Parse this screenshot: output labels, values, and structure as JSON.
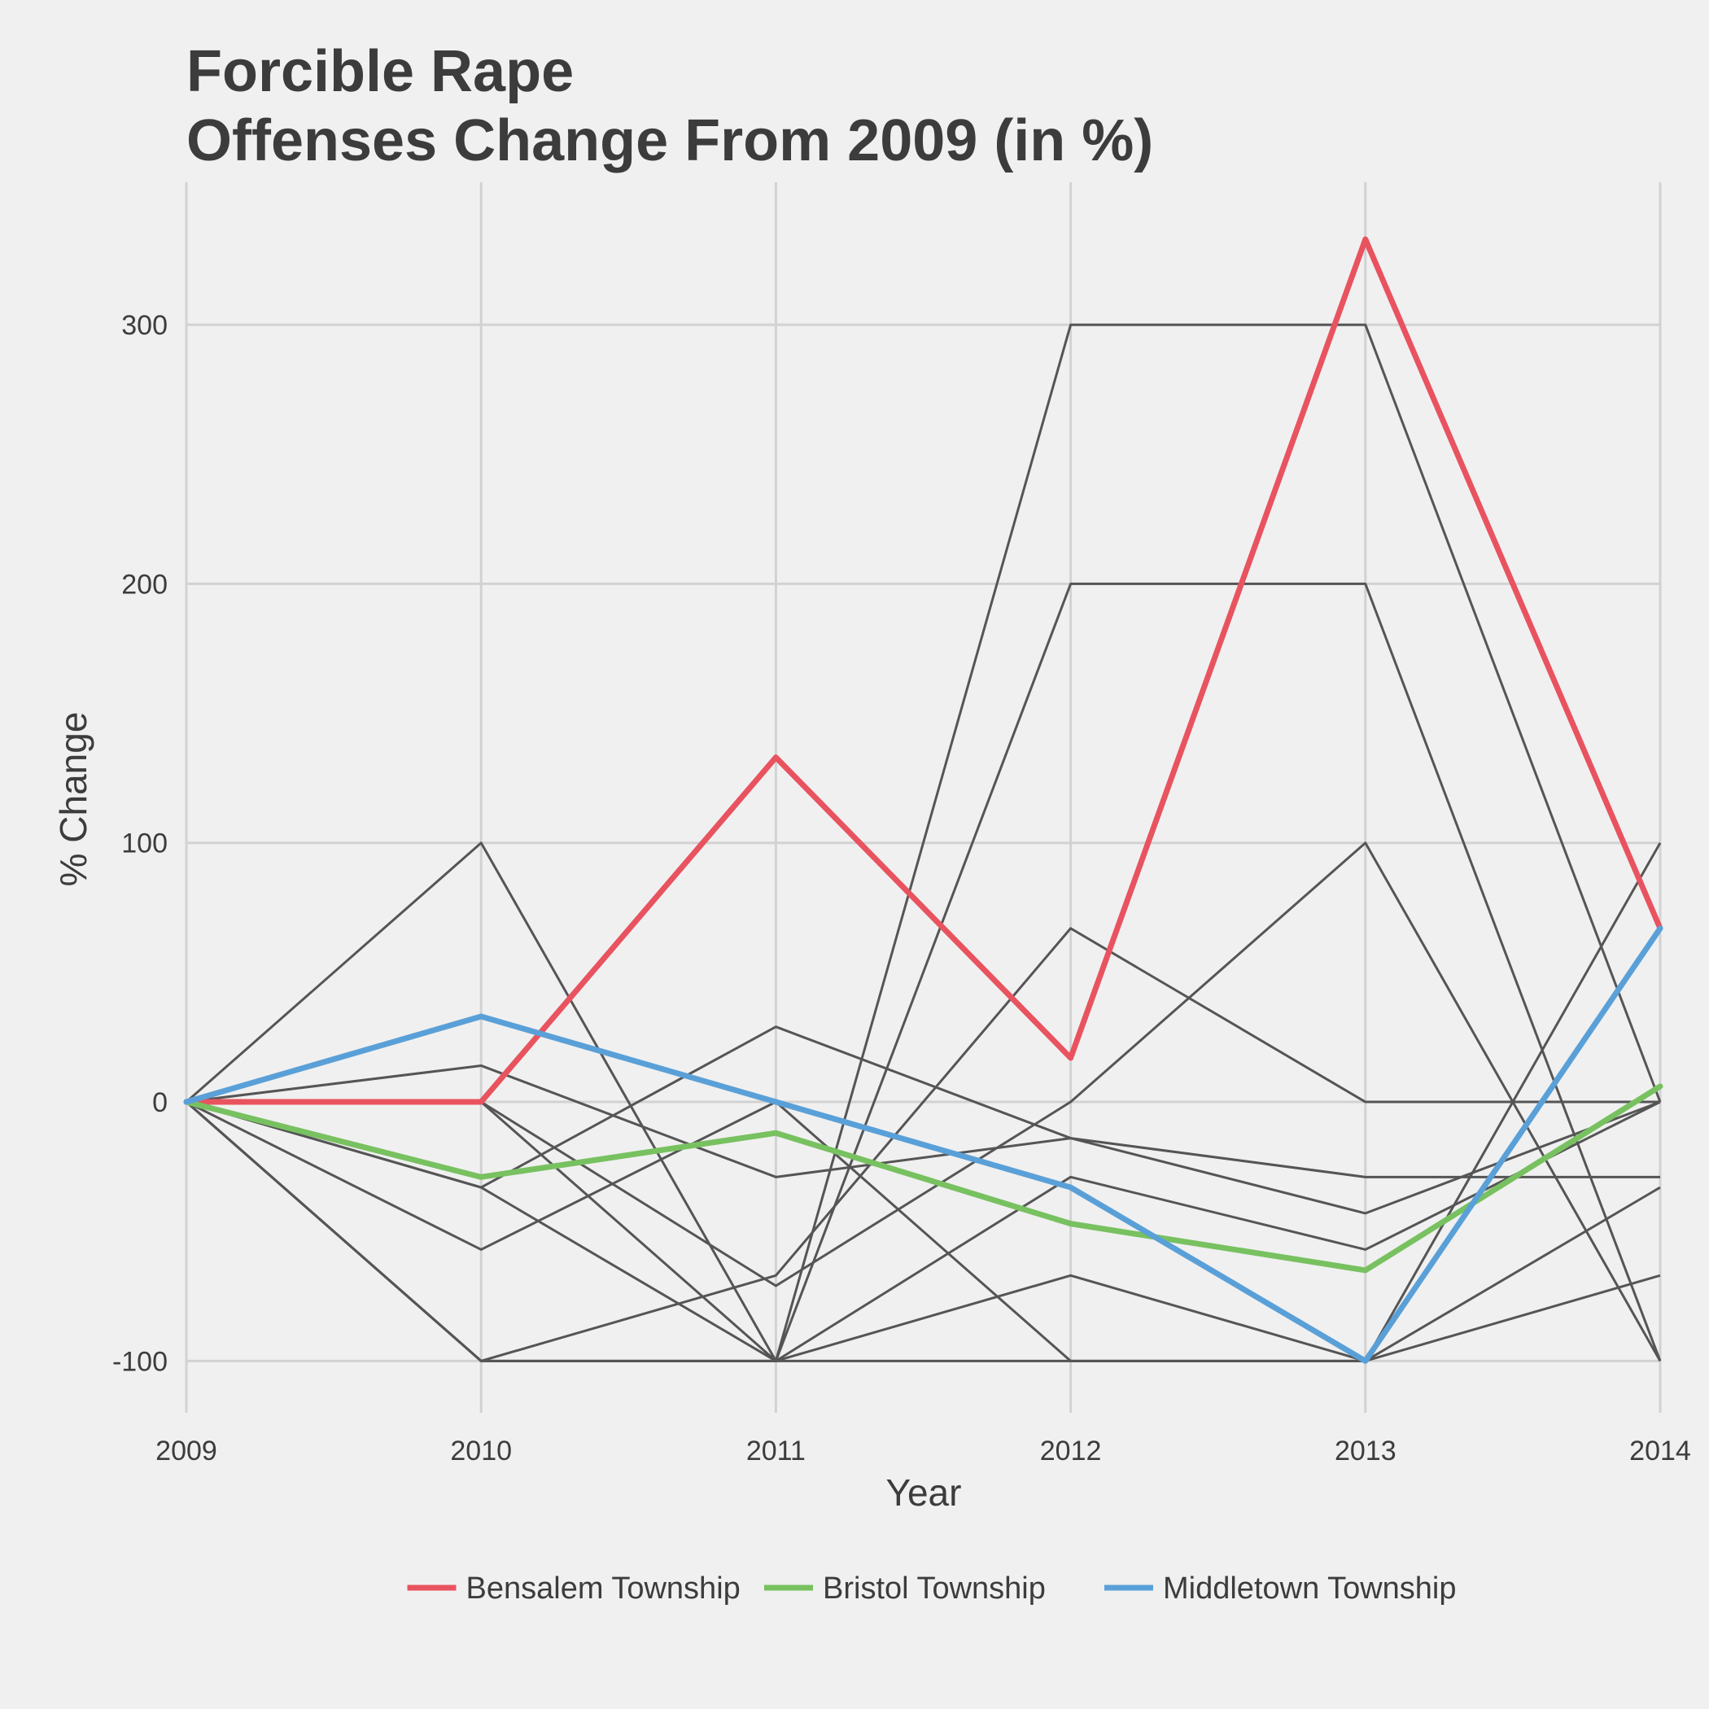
{
  "chart_data": {
    "type": "line",
    "title_lines": [
      "Forcible Rape",
      "Offenses Change From 2009 (in %)"
    ],
    "xlabel": "Year",
    "ylabel": "% Change",
    "x": [
      2009,
      2010,
      2011,
      2012,
      2013,
      2014
    ],
    "x_tick_labels": [
      "2009",
      "2010",
      "2011",
      "2012",
      "2013",
      "2014"
    ],
    "y_ticks": [
      -100,
      0,
      100,
      200,
      300
    ],
    "y_tick_labels": [
      "-100",
      "0",
      "100",
      "200",
      "300"
    ],
    "xlim": [
      2009,
      2014
    ],
    "ylim": [
      -120,
      355
    ],
    "grid": true,
    "legend_position": "bottom",
    "background_series_color": "#555555",
    "background_series": [
      {
        "values": [
          0,
          100,
          -100,
          -100,
          -100,
          100
        ]
      },
      {
        "values": [
          0,
          -100,
          -100,
          300,
          300,
          0
        ]
      },
      {
        "values": [
          0,
          14,
          -29,
          -14,
          -29,
          -29
        ]
      },
      {
        "values": [
          0,
          -57,
          0,
          -100,
          -100,
          -33
        ]
      },
      {
        "values": [
          0,
          0,
          -100,
          200,
          200,
          -100
        ]
      },
      {
        "values": [
          0,
          -100,
          -67,
          67,
          0,
          0
        ]
      },
      {
        "values": [
          0,
          -33,
          29,
          -14,
          -43,
          0
        ]
      },
      {
        "values": [
          0,
          0,
          -71,
          0,
          100,
          -100
        ]
      },
      {
        "values": [
          0,
          -33,
          -100,
          -67,
          -100,
          -67
        ]
      },
      {
        "values": [
          0,
          -100,
          -100,
          -29,
          -57,
          0
        ]
      }
    ],
    "series": [
      {
        "name": "Bensalem Township",
        "color": "#e8535f",
        "values": [
          0,
          0,
          133,
          17,
          333,
          67
        ]
      },
      {
        "name": "Bristol Township",
        "color": "#78c160",
        "values": [
          0,
          -29,
          -12,
          -47,
          -65,
          6
        ]
      },
      {
        "name": "Middletown Township",
        "color": "#5aa0d8",
        "values": [
          0,
          33,
          0,
          -33,
          -100,
          67
        ]
      }
    ]
  }
}
